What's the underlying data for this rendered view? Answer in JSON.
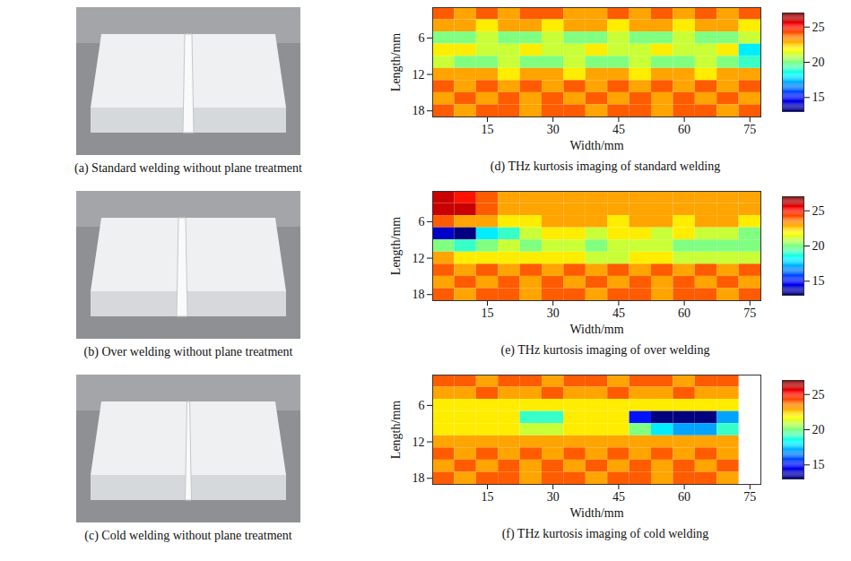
{
  "photos": [
    {
      "caption": "(a) Standard welding without plane treatment"
    },
    {
      "caption": "(b) Over welding without plane treatment"
    },
    {
      "caption": "(c) Cold welding without plane treatment"
    }
  ],
  "chart_data": [
    {
      "type": "heatmap",
      "caption": "(d) THz kurtosis imaging of standard welding",
      "xlabel": "Width/mm",
      "ylabel": "Length/mm",
      "xlim": [
        2.5,
        77.5
      ],
      "ylim": [
        1,
        19
      ],
      "xticks": [
        15,
        30,
        45,
        60,
        75
      ],
      "yticks": [
        6,
        12,
        18
      ],
      "x_bins": [
        2.5,
        7.5,
        12.5,
        17.5,
        22.5,
        27.5,
        32.5,
        37.5,
        42.5,
        47.5,
        52.5,
        57.5,
        62.5,
        67.5,
        72.5,
        77.5
      ],
      "y_bins": [
        1,
        3,
        5,
        7,
        9,
        11,
        13,
        15,
        17,
        19
      ],
      "cells": [
        [
          24,
          23,
          24,
          23,
          24,
          24,
          23,
          23,
          24,
          23,
          24,
          23,
          24,
          23,
          24
        ],
        [
          23,
          23,
          22,
          23,
          23,
          22,
          23,
          23,
          22,
          23,
          23,
          22,
          23,
          23,
          22
        ],
        [
          20,
          20,
          21,
          20,
          20,
          21,
          20,
          20,
          21,
          20,
          20,
          21,
          20,
          20,
          21
        ],
        [
          22,
          22,
          21,
          21,
          22,
          21,
          21,
          22,
          21,
          21,
          22,
          21,
          21,
          22,
          18
        ],
        [
          21,
          20,
          20,
          21,
          20,
          20,
          21,
          20,
          20,
          21,
          20,
          20,
          21,
          20,
          19
        ],
        [
          23,
          23,
          23,
          22,
          23,
          23,
          22,
          23,
          23,
          22,
          23,
          23,
          22,
          23,
          23
        ],
        [
          24,
          23,
          24,
          23,
          24,
          23,
          24,
          23,
          24,
          23,
          24,
          23,
          24,
          23,
          24
        ],
        [
          23,
          24,
          23,
          24,
          23,
          24,
          23,
          24,
          23,
          24,
          23,
          24,
          23,
          24,
          23
        ],
        [
          24,
          23,
          24,
          24,
          23,
          24,
          24,
          23,
          24,
          24,
          23,
          24,
          24,
          23,
          24
        ]
      ],
      "colorbar_range": [
        13,
        27
      ],
      "colorbar_ticks": [
        15,
        20,
        25
      ]
    },
    {
      "type": "heatmap",
      "caption": "(e) THz kurtosis imaging of over welding",
      "xlabel": "Width/mm",
      "ylabel": "Length/mm",
      "xlim": [
        2.5,
        77.5
      ],
      "ylim": [
        1,
        19
      ],
      "xticks": [
        15,
        30,
        45,
        60,
        75
      ],
      "yticks": [
        6,
        12,
        18
      ],
      "x_bins": [
        2.5,
        7.5,
        12.5,
        17.5,
        22.5,
        27.5,
        32.5,
        37.5,
        42.5,
        47.5,
        52.5,
        57.5,
        62.5,
        67.5,
        72.5,
        77.5
      ],
      "y_bins": [
        1,
        3,
        5,
        7,
        9,
        11,
        13,
        15,
        17,
        19
      ],
      "cells": [
        [
          26,
          25,
          24,
          23,
          23,
          23,
          23,
          23,
          23,
          23,
          23,
          23,
          23,
          23,
          23
        ],
        [
          26,
          26,
          24,
          23,
          23,
          23,
          23,
          23,
          23,
          23,
          23,
          23,
          23,
          23,
          23
        ],
        [
          24,
          23,
          23,
          22,
          22,
          23,
          23,
          23,
          22,
          23,
          23,
          22,
          23,
          23,
          22
        ],
        [
          14,
          13,
          18,
          19,
          21,
          22,
          22,
          21,
          22,
          22,
          21,
          22,
          21,
          21,
          20
        ],
        [
          20,
          19,
          20,
          21,
          20,
          21,
          21,
          20,
          21,
          21,
          21,
          20,
          20,
          20,
          20
        ],
        [
          23,
          22,
          22,
          22,
          22,
          22,
          22,
          21,
          21,
          22,
          22,
          21,
          21,
          21,
          21
        ],
        [
          24,
          23,
          24,
          23,
          24,
          23,
          24,
          23,
          24,
          23,
          24,
          23,
          24,
          23,
          24
        ],
        [
          23,
          24,
          23,
          24,
          23,
          24,
          23,
          24,
          23,
          24,
          23,
          24,
          23,
          24,
          23
        ],
        [
          24,
          23,
          24,
          24,
          23,
          24,
          24,
          23,
          24,
          24,
          23,
          24,
          24,
          23,
          24
        ]
      ],
      "colorbar_range": [
        13,
        27
      ],
      "colorbar_ticks": [
        15,
        20,
        25
      ]
    },
    {
      "type": "heatmap",
      "caption": "(f) THz kurtosis imaging of cold welding",
      "xlabel": "Width/mm",
      "ylabel": "Length/mm",
      "xlim": [
        2.5,
        77.5
      ],
      "ylim": [
        1,
        19
      ],
      "xticks": [
        15,
        30,
        45,
        60,
        75
      ],
      "yticks": [
        6,
        12,
        18
      ],
      "x_bins": [
        2.5,
        7.5,
        12.5,
        17.5,
        22.5,
        27.5,
        32.5,
        37.5,
        42.5,
        47.5,
        52.5,
        57.5,
        62.5,
        67.5,
        72.5,
        77.5
      ],
      "y_bins": [
        1,
        3,
        5,
        7,
        9,
        11,
        13,
        15,
        17,
        19
      ],
      "cells": [
        [
          24,
          24,
          23,
          24,
          24,
          23,
          24,
          24,
          23,
          24,
          24,
          23,
          24,
          24,
          null
        ],
        [
          23,
          23,
          24,
          23,
          23,
          24,
          23,
          23,
          24,
          23,
          23,
          24,
          23,
          23,
          null
        ],
        [
          22,
          22,
          22,
          22,
          22,
          22,
          22,
          22,
          22,
          22,
          22,
          22,
          22,
          22,
          null
        ],
        [
          22,
          22,
          22,
          22,
          19,
          19,
          22,
          22,
          22,
          15,
          13,
          13,
          13,
          17,
          null
        ],
        [
          22,
          22,
          22,
          22,
          21,
          21,
          22,
          22,
          22,
          20,
          18,
          17,
          17,
          19,
          null
        ],
        [
          23,
          23,
          23,
          23,
          23,
          23,
          23,
          23,
          23,
          23,
          23,
          23,
          23,
          23,
          null
        ],
        [
          24,
          23,
          24,
          23,
          24,
          23,
          24,
          23,
          24,
          23,
          24,
          23,
          24,
          23,
          null
        ],
        [
          23,
          24,
          23,
          24,
          23,
          24,
          23,
          24,
          23,
          24,
          23,
          24,
          23,
          24,
          null
        ],
        [
          24,
          23,
          24,
          24,
          23,
          24,
          24,
          23,
          24,
          24,
          23,
          24,
          24,
          23,
          null
        ]
      ],
      "colorbar_range": [
        13,
        27
      ],
      "colorbar_ticks": [
        15,
        20,
        25
      ]
    }
  ]
}
